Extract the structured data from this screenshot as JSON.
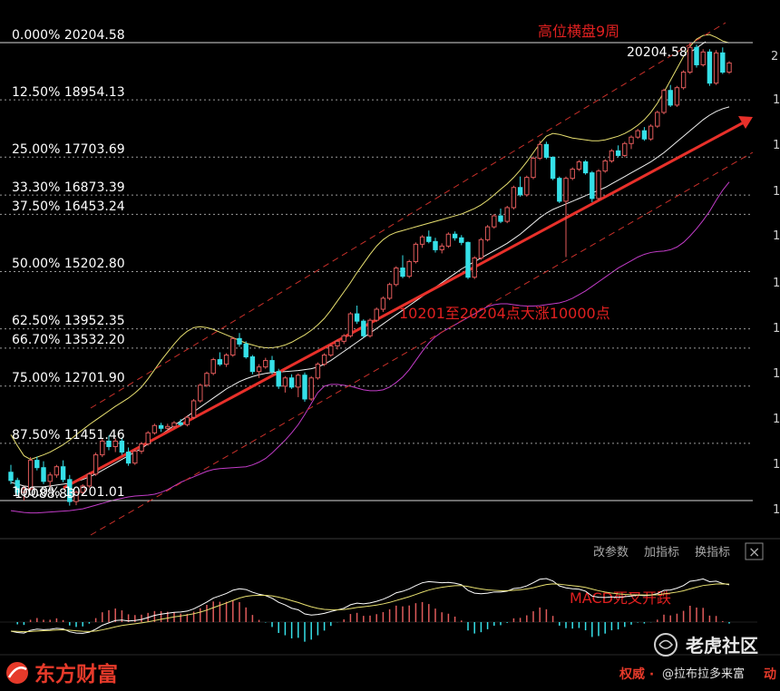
{
  "colors": {
    "background": "#000000",
    "up_candle": "#e05a5a",
    "down_candle": "#35e0e8",
    "fib_line": "#9a9a9a",
    "trend_line": "#e8302a",
    "channel_dash": "#c8302a",
    "upper_band": "#e8e070",
    "mid_band": "#f0f0f0",
    "ma_purple": "#c23cc8",
    "macd_dif": "#ffffff",
    "macd_dea": "#e8e070",
    "annotation": "#e02020",
    "brand": "#e63a2a"
  },
  "chart_data": {
    "type": "candlestick",
    "title": "",
    "fib_levels": [
      {
        "label": "0.000%",
        "value": 20204.58
      },
      {
        "label": "12.50%",
        "value": 18954.13
      },
      {
        "label": "25.00%",
        "value": 17703.69
      },
      {
        "label": "33.30%",
        "value": 16873.39
      },
      {
        "label": "37.50%",
        "value": 16453.24
      },
      {
        "label": "50.00%",
        "value": 15202.8
      },
      {
        "label": "62.50%",
        "value": 13952.35
      },
      {
        "label": "66.70%",
        "value": 13532.2
      },
      {
        "label": "75.00%",
        "value": 12701.9
      },
      {
        "label": "87.50%",
        "value": 11451.46
      },
      {
        "label": "100.0%",
        "value": 10201.01
      }
    ],
    "fib_text": [
      "0.000% 20204.58",
      "12.50% 18954.13",
      "25.00% 17703.69",
      "33.30% 16873.39",
      "37.50% 16453.24",
      "50.00% 15202.80",
      "62.50% 13952.35",
      "66.70% 13532.20",
      "75.00% 12701.90",
      "87.50% 11451.46",
      "100.0% 10201.01"
    ],
    "low_marker_label": "10088.83",
    "high_marker_label": "20204.58",
    "right_tick_labels": [
      "2",
      "1",
      "1",
      "1",
      "1",
      "1",
      "1",
      "1",
      "1",
      "1",
      "1"
    ],
    "annotations": [
      "高位横盘9周",
      "10201至20204点大涨10000点",
      "MACD死叉开跌"
    ],
    "candles": [
      [
        10820,
        10980,
        10560,
        10640
      ],
      [
        10640,
        10700,
        10300,
        10380
      ],
      [
        10380,
        10520,
        10200,
        10460
      ],
      [
        10460,
        11150,
        10420,
        11080
      ],
      [
        11080,
        11160,
        10860,
        10920
      ],
      [
        10920,
        11060,
        10560,
        10620
      ],
      [
        10620,
        10820,
        10500,
        10760
      ],
      [
        10760,
        10980,
        10700,
        10940
      ],
      [
        10940,
        11080,
        10600,
        10660
      ],
      [
        10660,
        10760,
        10090,
        10180
      ],
      [
        10180,
        10420,
        10100,
        10380
      ],
      [
        10380,
        10560,
        10300,
        10520
      ],
      [
        10520,
        10820,
        10480,
        10780
      ],
      [
        10780,
        11250,
        10740,
        11200
      ],
      [
        11200,
        11560,
        11150,
        11500
      ],
      [
        11500,
        11620,
        11300,
        11380
      ],
      [
        11380,
        11560,
        11260,
        11500
      ],
      [
        11500,
        11580,
        11200,
        11260
      ],
      [
        11260,
        11360,
        10960,
        11020
      ],
      [
        11020,
        11320,
        10980,
        11280
      ],
      [
        11280,
        11480,
        11220,
        11440
      ],
      [
        11440,
        11720,
        11400,
        11680
      ],
      [
        11680,
        11880,
        11640,
        11840
      ],
      [
        11840,
        11900,
        11700,
        11780
      ],
      [
        11780,
        11880,
        11720,
        11820
      ],
      [
        11820,
        11940,
        11780,
        11900
      ],
      [
        11900,
        11980,
        11820,
        11860
      ],
      [
        11860,
        12060,
        11820,
        12020
      ],
      [
        12020,
        12420,
        11980,
        12380
      ],
      [
        12380,
        12760,
        12340,
        12720
      ],
      [
        12720,
        13020,
        12680,
        12980
      ],
      [
        12980,
        13320,
        12940,
        13280
      ],
      [
        13280,
        13440,
        13140,
        13180
      ],
      [
        13180,
        13420,
        13120,
        13380
      ],
      [
        13380,
        13780,
        13340,
        13740
      ],
      [
        13740,
        13860,
        13560,
        13620
      ],
      [
        13620,
        13680,
        13300,
        13340
      ],
      [
        13340,
        13380,
        12960,
        13020
      ],
      [
        13020,
        13180,
        12880,
        13120
      ],
      [
        13120,
        13320,
        13080,
        13260
      ],
      [
        13260,
        13360,
        12960,
        13020
      ],
      [
        13020,
        13080,
        12640,
        12700
      ],
      [
        12700,
        12920,
        12560,
        12880
      ],
      [
        12880,
        12960,
        12640,
        12680
      ],
      [
        12680,
        12980,
        12460,
        12940
      ],
      [
        12940,
        13000,
        12360,
        12420
      ],
      [
        12420,
        12920,
        12380,
        12880
      ],
      [
        12880,
        13220,
        12840,
        13180
      ],
      [
        13180,
        13420,
        13140,
        13380
      ],
      [
        13380,
        13620,
        13340,
        13580
      ],
      [
        13580,
        13720,
        13500,
        13680
      ],
      [
        13680,
        13840,
        13620,
        13800
      ],
      [
        13800,
        14320,
        13760,
        14280
      ],
      [
        14280,
        14460,
        14060,
        14120
      ],
      [
        14120,
        14160,
        13760,
        13800
      ],
      [
        13800,
        14180,
        13760,
        14140
      ],
      [
        14140,
        14420,
        14100,
        14380
      ],
      [
        14380,
        14660,
        14320,
        14620
      ],
      [
        14620,
        14960,
        14580,
        14920
      ],
      [
        14920,
        15320,
        14880,
        15280
      ],
      [
        15280,
        15560,
        15060,
        15100
      ],
      [
        15100,
        15460,
        15060,
        15420
      ],
      [
        15420,
        15840,
        15380,
        15800
      ],
      [
        15800,
        16000,
        15720,
        15960
      ],
      [
        15960,
        16100,
        15820,
        15860
      ],
      [
        15860,
        15940,
        15620,
        15680
      ],
      [
        15680,
        15820,
        15600,
        15760
      ],
      [
        15760,
        16060,
        15720,
        16020
      ],
      [
        16020,
        16080,
        15880,
        15940
      ],
      [
        15940,
        16000,
        15780,
        15840
      ],
      [
        15840,
        15860,
        15040,
        15080
      ],
      [
        15080,
        15540,
        15040,
        15500
      ],
      [
        15500,
        15940,
        15460,
        15900
      ],
      [
        15900,
        16220,
        15860,
        16180
      ],
      [
        16180,
        16460,
        16140,
        16420
      ],
      [
        16420,
        16580,
        16260,
        16300
      ],
      [
        16300,
        16640,
        16260,
        16600
      ],
      [
        16600,
        17080,
        16560,
        17040
      ],
      [
        17040,
        17280,
        16840,
        16880
      ],
      [
        16880,
        17300,
        16840,
        17260
      ],
      [
        17260,
        17720,
        17220,
        17680
      ],
      [
        17680,
        18060,
        17640,
        17980
      ],
      [
        17980,
        18040,
        17660,
        17700
      ],
      [
        17700,
        17720,
        17200,
        17240
      ],
      [
        17240,
        17280,
        16700,
        16740
      ],
      [
        16740,
        17280,
        15520,
        17240
      ],
      [
        17240,
        17480,
        17200,
        17440
      ],
      [
        17440,
        17640,
        17400,
        17600
      ],
      [
        17600,
        17640,
        17320,
        17360
      ],
      [
        17360,
        17400,
        16720,
        16800
      ],
      [
        16800,
        17440,
        16760,
        17400
      ],
      [
        17400,
        17660,
        17360,
        17620
      ],
      [
        17620,
        17880,
        17580,
        17840
      ],
      [
        17840,
        17960,
        17700,
        17740
      ],
      [
        17740,
        18040,
        17700,
        18000
      ],
      [
        18000,
        18180,
        17880,
        18140
      ],
      [
        18140,
        18320,
        18100,
        18280
      ],
      [
        18280,
        18360,
        18060,
        18100
      ],
      [
        18100,
        18420,
        18060,
        18380
      ],
      [
        18380,
        18720,
        18340,
        18680
      ],
      [
        18680,
        19200,
        18640,
        19160
      ],
      [
        19160,
        19280,
        18800,
        18840
      ],
      [
        18840,
        19260,
        18800,
        19220
      ],
      [
        19220,
        19600,
        19180,
        19560
      ],
      [
        19560,
        20204.58,
        19520,
        20100
      ],
      [
        20100,
        20160,
        19660,
        19720
      ],
      [
        19720,
        20060,
        19680,
        20000
      ],
      [
        20000,
        20060,
        19260,
        19320
      ],
      [
        19320,
        20040,
        19280,
        19980
      ],
      [
        19980,
        20100,
        19520,
        19560
      ],
      [
        19560,
        19800,
        19520,
        19760
      ]
    ],
    "upper_band": [
      11640,
      11400,
      11180,
      11100,
      11150,
      11200,
      11260,
      11340,
      11420,
      11520,
      11640,
      11750,
      11860,
      11960,
      12060,
      12160,
      12260,
      12350,
      12440,
      12550,
      12680,
      12860,
      13060,
      13260,
      13440,
      13620,
      13780,
      13900,
      13980,
      14000,
      13980,
      13940,
      13880,
      13820,
      13760,
      13700,
      13640,
      13600,
      13560,
      13540,
      13540,
      13560,
      13600,
      13660,
      13740,
      13820,
      13920,
      14040,
      14180,
      14360,
      14560,
      14760,
      14960,
      15180,
      15380,
      15580,
      15760,
      15900,
      16000,
      16060,
      16100,
      16140,
      16180,
      16220,
      16260,
      16300,
      16340,
      16380,
      16420,
      16460,
      16520,
      16580,
      16660,
      16760,
      16880,
      17000,
      17120,
      17260,
      17420,
      17600,
      17800,
      18000,
      18160,
      18220,
      18200,
      18160,
      18120,
      18100,
      18080,
      18060,
      18060,
      18080,
      18120,
      18160,
      18220,
      18300,
      18400,
      18520,
      18680,
      18880,
      19120,
      19380,
      19640,
      19900,
      20120,
      20280,
      20360,
      20380,
      20320,
      20240,
      20200
    ],
    "mid_band": [
      10600,
      10560,
      10520,
      10500,
      10500,
      10500,
      10520,
      10540,
      10560,
      10580,
      10620,
      10660,
      10720,
      10780,
      10860,
      10940,
      11020,
      11100,
      11180,
      11260,
      11340,
      11440,
      11540,
      11640,
      11740,
      11840,
      11940,
      12040,
      12140,
      12240,
      12340,
      12440,
      12540,
      12640,
      12720,
      12800,
      12860,
      12910,
      12950,
      12980,
      13000,
      13010,
      13020,
      13030,
      13040,
      13060,
      13080,
      13120,
      13180,
      13260,
      13360,
      13460,
      13560,
      13660,
      13760,
      13860,
      13960,
      14060,
      14160,
      14260,
      14360,
      14460,
      14560,
      14660,
      14760,
      14860,
      14960,
      15060,
      15160,
      15260,
      15340,
      15420,
      15500,
      15580,
      15660,
      15740,
      15820,
      15920,
      16020,
      16140,
      16260,
      16380,
      16480,
      16560,
      16620,
      16680,
      16740,
      16800,
      16860,
      16920,
      16980,
      17040,
      17120,
      17200,
      17280,
      17360,
      17440,
      17520,
      17600,
      17700,
      17800,
      17920,
      18040,
      18160,
      18280,
      18400,
      18520,
      18620,
      18700,
      18760,
      18800
    ],
    "ma_purple": [
      9980,
      9960,
      9940,
      9930,
      9930,
      9940,
      9950,
      9960,
      9970,
      9980,
      10000,
      10020,
      10060,
      10100,
      10140,
      10180,
      10220,
      10250,
      10280,
      10300,
      10310,
      10320,
      10340,
      10380,
      10440,
      10520,
      10600,
      10660,
      10720,
      10780,
      10840,
      10880,
      10900,
      10910,
      10920,
      10930,
      10940,
      10980,
      11040,
      11120,
      11240,
      11380,
      11520,
      11680,
      11860,
      12080,
      12320,
      12560,
      12700,
      12740,
      12740,
      12720,
      12700,
      12660,
      12620,
      12600,
      12600,
      12620,
      12680,
      12780,
      12900,
      13060,
      13260,
      13460,
      13640,
      13780,
      13880,
      13960,
      14040,
      14120,
      14200,
      14280,
      14360,
      14440,
      14480,
      14500,
      14500,
      14480,
      14460,
      14450,
      14450,
      14460,
      14480,
      14500,
      14520,
      14560,
      14620,
      14700,
      14780,
      14880,
      14980,
      15080,
      15180,
      15280,
      15360,
      15440,
      15520,
      15580,
      15620,
      15640,
      15650,
      15680,
      15740,
      15840,
      15980,
      16140,
      16320,
      16520,
      16760,
      16980,
      17160
    ]
  },
  "toolbar": {
    "change_params": "改参数",
    "add_indicator": "加指标",
    "switch_indicator": "换指标",
    "close_glyph": "×"
  },
  "footer": {
    "logo_text": "东方财富",
    "authority_text": "权威 · ",
    "right_text": "@拉布拉多来富",
    "suffix_text": "动",
    "watermark_text": "老虎社区"
  }
}
